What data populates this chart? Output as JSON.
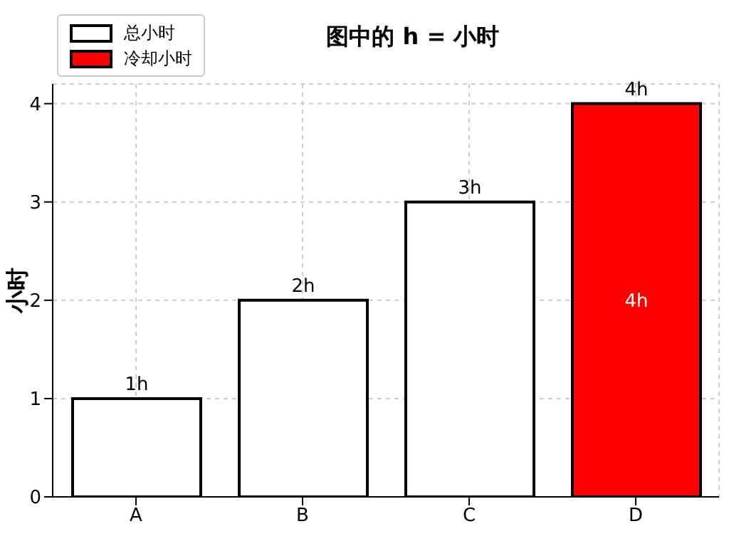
{
  "chart_data": {
    "type": "bar",
    "title": "图中的 h = 小时",
    "ylabel": "小时",
    "categories": [
      "A",
      "B",
      "C",
      "D"
    ],
    "stacked": true,
    "series": [
      {
        "name": "总小时",
        "color": "#ffffff",
        "values": [
          1,
          2,
          3,
          null
        ]
      },
      {
        "name": "冷却小时",
        "color": "#ff0000",
        "values": [
          null,
          null,
          null,
          4
        ],
        "value_labels": [
          null,
          null,
          null,
          "4h"
        ]
      }
    ],
    "totals": [
      "1h",
      "2h",
      "3h",
      "4h"
    ],
    "ylim": [
      0,
      4.2
    ],
    "yticks": [
      0,
      1,
      2,
      3,
      4
    ],
    "grid": true,
    "legend": "top left"
  }
}
